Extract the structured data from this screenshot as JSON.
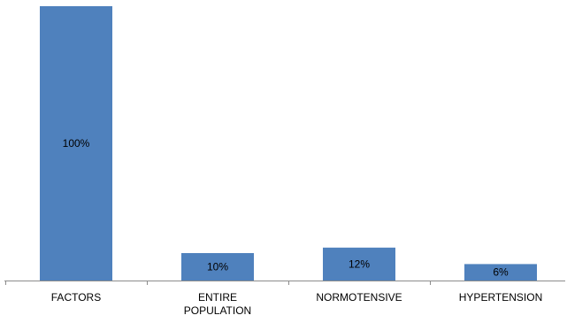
{
  "chart_data": {
    "type": "bar",
    "categories": [
      [
        "FACTORS"
      ],
      [
        "ENTIRE",
        "POPULATION"
      ],
      [
        "NORMOTENSIVE"
      ],
      [
        "HYPERTENSION"
      ]
    ],
    "values": [
      100,
      10,
      12,
      6
    ],
    "data_labels": [
      "100%",
      "10%",
      "12%",
      "6%"
    ],
    "ylim": [
      0,
      100
    ],
    "grid": false,
    "legend": "none",
    "colors": {
      "bar": "#4F81BD",
      "axis": "#8C8C8C",
      "text": "#000000"
    }
  }
}
